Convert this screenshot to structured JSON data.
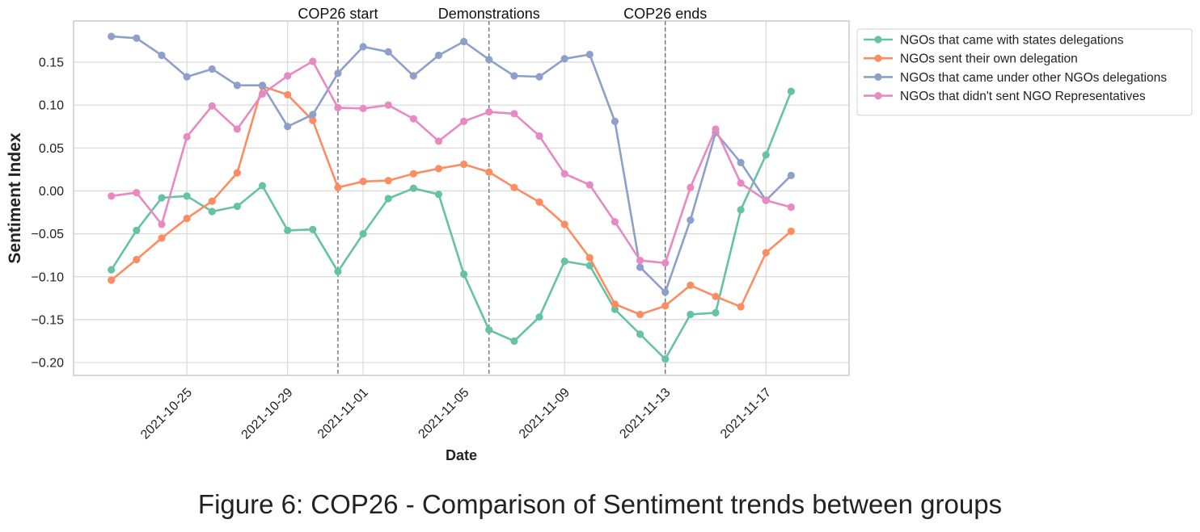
{
  "figure": {
    "caption": "Figure 6: COP26 - Comparison of Sentiment trends between groups"
  },
  "chart_data": {
    "type": "line",
    "title": "",
    "xlabel": "Date",
    "ylabel": "Sentiment Index",
    "x": [
      "2021-10-22",
      "2021-10-23",
      "2021-10-24",
      "2021-10-25",
      "2021-10-26",
      "2021-10-27",
      "2021-10-28",
      "2021-10-29",
      "2021-10-30",
      "2021-10-31",
      "2021-11-01",
      "2021-11-02",
      "2021-11-03",
      "2021-11-04",
      "2021-11-05",
      "2021-11-06",
      "2021-11-07",
      "2021-11-08",
      "2021-11-09",
      "2021-11-10",
      "2021-11-11",
      "2021-11-12",
      "2021-11-13",
      "2021-11-14",
      "2021-11-15",
      "2021-11-16",
      "2021-11-17",
      "2021-11-18",
      "2021-11-19"
    ],
    "xlim": [
      "2021-10-20.5",
      "2021-11-20.3"
    ],
    "ylim": [
      -0.215,
      0.198
    ],
    "x_ticks": [
      "2021-10-25",
      "2021-10-29",
      "2021-11-01",
      "2021-11-05",
      "2021-11-09",
      "2021-11-13",
      "2021-11-17"
    ],
    "y_ticks": [
      -0.2,
      -0.15,
      -0.1,
      -0.05,
      0.0,
      0.05,
      0.1,
      0.15
    ],
    "y_tick_labels": [
      "−0.20",
      "−0.15",
      "−0.10",
      "−0.05",
      "0.00",
      "0.05",
      "0.10",
      "0.15"
    ],
    "grid": true,
    "legend_position": "outside-top-right",
    "annotations": [
      {
        "x": "2021-10-31",
        "label": "COP26 start"
      },
      {
        "x": "2021-11-06",
        "label": "Demonstrations"
      },
      {
        "x": "2021-11-13",
        "label": "COP26 ends"
      }
    ],
    "series": [
      {
        "name": "NGOs that came with states delegations",
        "color": "#66c2a5",
        "values": [
          -0.092,
          -0.046,
          -0.008,
          -0.006,
          -0.024,
          -0.018,
          0.006,
          -0.046,
          -0.045,
          -0.094,
          -0.05,
          -0.009,
          0.003,
          -0.004,
          -0.097,
          -0.162,
          -0.175,
          -0.147,
          -0.082,
          -0.087,
          -0.138,
          -0.167,
          -0.196,
          -0.144,
          -0.142,
          -0.022,
          0.042,
          0.116,
          null
        ]
      },
      {
        "name": "NGOs sent their own delegation",
        "color": "#fc8d62",
        "values": [
          -0.104,
          -0.08,
          -0.055,
          -0.032,
          -0.012,
          0.021,
          0.122,
          0.112,
          0.082,
          0.004,
          0.011,
          0.012,
          0.02,
          0.026,
          0.031,
          0.022,
          0.004,
          -0.013,
          -0.039,
          -0.078,
          -0.132,
          -0.144,
          -0.134,
          -0.11,
          -0.123,
          -0.135,
          -0.072,
          -0.047,
          null
        ]
      },
      {
        "name": "NGOs that came under other NGOs delegations",
        "color": "#8da0cb",
        "values": [
          0.18,
          0.178,
          0.158,
          0.133,
          0.142,
          0.123,
          0.123,
          0.075,
          0.089,
          0.137,
          0.168,
          0.162,
          0.134,
          0.158,
          0.174,
          0.153,
          0.134,
          0.133,
          0.154,
          0.159,
          0.081,
          -0.089,
          -0.118,
          -0.034,
          0.068,
          0.033,
          -0.011,
          0.018,
          null
        ]
      },
      {
        "name": "NGOs that didn't sent NGO Representatives",
        "color": "#e78ac3",
        "values": [
          -0.006,
          -0.002,
          -0.039,
          0.063,
          0.099,
          0.072,
          0.113,
          0.134,
          0.151,
          0.097,
          0.096,
          0.1,
          0.084,
          0.058,
          0.081,
          0.092,
          0.09,
          0.064,
          0.02,
          0.007,
          -0.036,
          -0.081,
          -0.084,
          0.004,
          0.072,
          0.009,
          -0.011,
          -0.019,
          null
        ]
      }
    ]
  }
}
